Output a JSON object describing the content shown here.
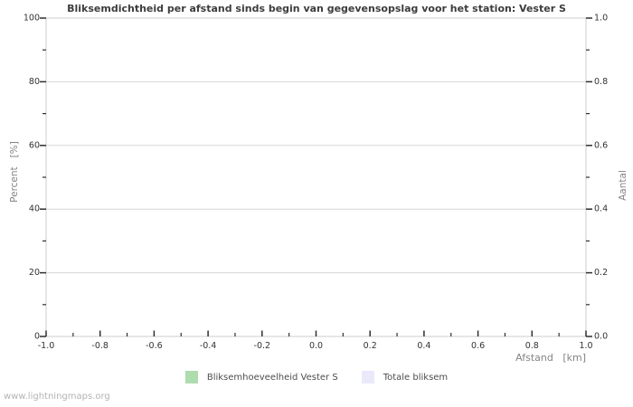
{
  "watermark": "www.lightningmaps.org",
  "chart_data": {
    "type": "bar",
    "title": "Bliksemdichtheid per afstand sinds begin van gegevensopslag voor het station: Vester S",
    "xlabel": "Afstand   [km]",
    "ylabel_left": "Percent   [%]",
    "ylabel_right": "Aantal",
    "xlim": [
      -1.0,
      1.0
    ],
    "ylim_left": [
      0,
      100
    ],
    "ylim_right": [
      0.0,
      1.0
    ],
    "x_tick_values": [
      -1.0,
      -0.8,
      -0.6,
      -0.4,
      -0.2,
      0.0,
      0.2,
      0.4,
      0.6,
      0.8,
      1.0
    ],
    "x_tick_labels": [
      "-1.0",
      "-0.8",
      "-0.6",
      "-0.4",
      "-0.2",
      "0.0",
      "0.2",
      "0.4",
      "0.6",
      "0.8",
      "1.0"
    ],
    "x_minor_tick_values": [
      -0.9,
      -0.7,
      -0.5,
      -0.3,
      -0.1,
      0.1,
      0.3,
      0.5,
      0.7,
      0.9
    ],
    "y_left_tick_values": [
      0,
      20,
      40,
      60,
      80,
      100
    ],
    "y_left_tick_labels": [
      "0",
      "20",
      "40",
      "60",
      "80",
      "100"
    ],
    "y_left_minor_tick_values": [
      10,
      30,
      50,
      70,
      90
    ],
    "y_right_tick_values": [
      0.0,
      0.2,
      0.4,
      0.6,
      0.8,
      1.0
    ],
    "y_right_tick_labels": [
      "0.0",
      "0.2",
      "0.4",
      "0.6",
      "0.8",
      "1.0"
    ],
    "y_right_minor_tick_values": [
      0.1,
      0.3,
      0.5,
      0.7,
      0.9
    ],
    "grid": "horizontal-major-only",
    "legend_position": "bottom-center",
    "series": [
      {
        "name": "Bliksemhoeveelheid Vester S",
        "color": "#aedcae",
        "values": []
      },
      {
        "name": "Totale bliksem",
        "color": "#e9e9fa",
        "values": []
      }
    ],
    "colors": {
      "title": "#3c3c3c",
      "axis_border": "#cccccc",
      "gridline": "#d6d6d6",
      "tick_mark": "#2f2f2f",
      "tick_label": "#333333",
      "axis_title": "#848484",
      "legend_text": "#4d4d4d",
      "watermark": "#b3b3b3",
      "plot_background": "#ffffff"
    }
  }
}
